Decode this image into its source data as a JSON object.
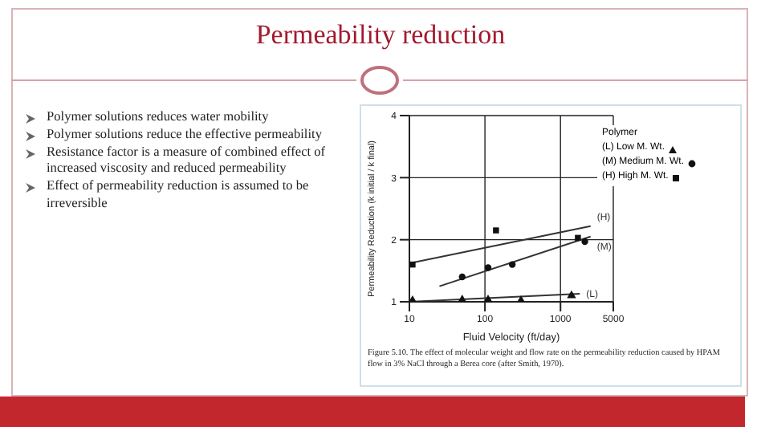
{
  "chart_data": {
    "type": "scatter",
    "title": "Permeability reduction",
    "xlabel": "Fluid Velocity (ft/day)",
    "ylabel": "Permeability Reduction (k initial / k final)",
    "legend_title": "Polymer",
    "log": "x",
    "xlim": [
      10,
      5000
    ],
    "xticks": [
      10,
      100,
      1000,
      5000
    ],
    "ylim": [
      1,
      4
    ],
    "yticks": [
      1,
      2,
      3,
      4
    ],
    "grid": true,
    "legend": "top right",
    "series": [
      {
        "name": "(L) Low M. Wt.",
        "marker": "triangle",
        "color": "#111111",
        "x": [
          11,
          50,
          110,
          300,
          1400
        ],
        "values": [
          1.02,
          1.03,
          1.03,
          1.02,
          1.1
        ]
      },
      {
        "name": "(M) Medium M. Wt.",
        "marker": "circle",
        "color": "#111111",
        "x": [
          50,
          110,
          230,
          2100
        ],
        "values": [
          1.4,
          1.55,
          1.6,
          1.97
        ]
      },
      {
        "name": "(H) High M. Wt.",
        "marker": "square",
        "color": "#111111",
        "x": [
          11,
          140,
          1700
        ],
        "values": [
          1.6,
          2.15,
          2.03
        ]
      },
      {
        "name": "(L)",
        "type": "line",
        "marker": "none",
        "color": "#333333",
        "x": [
          10,
          1800
        ],
        "values": [
          1.0,
          1.13
        ]
      },
      {
        "name": "(M)",
        "type": "line",
        "marker": "none",
        "color": "#333333",
        "x": [
          25,
          2500
        ],
        "values": [
          1.25,
          2.05
        ]
      },
      {
        "name": "(H)",
        "type": "line",
        "marker": "none",
        "color": "#333333",
        "x": [
          10,
          2500
        ],
        "values": [
          1.62,
          2.22
        ]
      }
    ],
    "annotations": [
      "Polymer solutions reduces water mobility",
      "Polymer solutions reduce the effective permeability",
      "Resistance factor is a measure of combined effect of increased viscosity and reduced permeability",
      "Effect of permeability reduction is assumed to be irreversible",
      "Figure 5.10. The effect of molecular weight and flow rate on the permeability reduction caused by HPAM flow in 3% NaCl through a Berea core (after Smith, 1970)."
    ]
  }
}
